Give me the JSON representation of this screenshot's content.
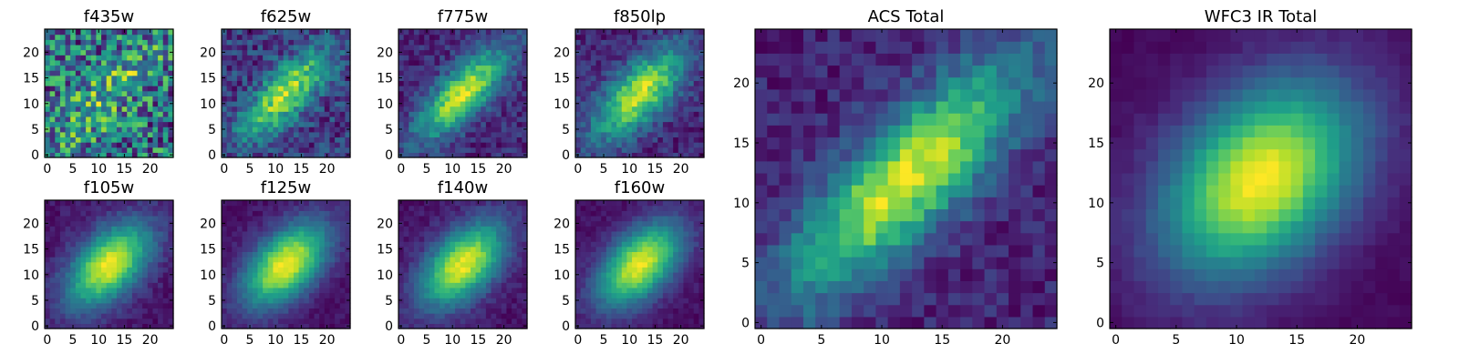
{
  "chart_data": [
    {
      "type": "heatmap",
      "title": "f435w",
      "grid_size": 25,
      "ylim": [
        -0.5,
        24.5
      ],
      "xlim": [
        -0.5,
        24.5
      ],
      "xticks": [
        0,
        5,
        10,
        15,
        20
      ],
      "yticks": [
        0,
        5,
        10,
        15,
        20
      ],
      "colormap": "viridis",
      "peak": [
        12,
        12
      ],
      "spread": [
        9,
        3
      ],
      "angle_deg": 45,
      "noise": 0.9,
      "background": 0.65
    },
    {
      "type": "heatmap",
      "title": "f625w",
      "grid_size": 25,
      "ylim": [
        -0.5,
        24.5
      ],
      "xlim": [
        -0.5,
        24.5
      ],
      "xticks": [
        0,
        5,
        10,
        15,
        20
      ],
      "yticks": [
        0,
        5,
        10,
        15,
        20
      ],
      "colormap": "viridis",
      "peak": [
        12,
        12
      ],
      "spread": [
        8,
        3
      ],
      "angle_deg": 45,
      "noise": 0.35,
      "background": 0.3
    },
    {
      "type": "heatmap",
      "title": "f775w",
      "grid_size": 25,
      "ylim": [
        -0.5,
        24.5
      ],
      "xlim": [
        -0.5,
        24.5
      ],
      "xticks": [
        0,
        5,
        10,
        15,
        20
      ],
      "yticks": [
        0,
        5,
        10,
        15,
        20
      ],
      "colormap": "viridis",
      "peak": [
        12,
        12
      ],
      "spread": [
        8,
        3
      ],
      "angle_deg": 45,
      "noise": 0.25,
      "background": 0.15
    },
    {
      "type": "heatmap",
      "title": "f850lp",
      "grid_size": 25,
      "ylim": [
        -0.5,
        24.5
      ],
      "xlim": [
        -0.5,
        24.5
      ],
      "xticks": [
        0,
        5,
        10,
        15,
        20
      ],
      "yticks": [
        0,
        5,
        10,
        15,
        20
      ],
      "colormap": "viridis",
      "peak": [
        12,
        12
      ],
      "spread": [
        8,
        3.5
      ],
      "angle_deg": 45,
      "noise": 0.25,
      "background": 0.15
    },
    {
      "type": "heatmap",
      "title": "f105w",
      "grid_size": 25,
      "ylim": [
        -0.5,
        24.5
      ],
      "xlim": [
        -0.5,
        24.5
      ],
      "xticks": [
        0,
        5,
        10,
        15,
        20
      ],
      "yticks": [
        0,
        5,
        10,
        15,
        20
      ],
      "colormap": "viridis",
      "peak": [
        12,
        12
      ],
      "spread": [
        7,
        4
      ],
      "angle_deg": 45,
      "noise": 0.12,
      "background": 0.1
    },
    {
      "type": "heatmap",
      "title": "f125w",
      "grid_size": 25,
      "ylim": [
        -0.5,
        24.5
      ],
      "xlim": [
        -0.5,
        24.5
      ],
      "xticks": [
        0,
        5,
        10,
        15,
        20
      ],
      "yticks": [
        0,
        5,
        10,
        15,
        20
      ],
      "colormap": "viridis",
      "peak": [
        12,
        12
      ],
      "spread": [
        7,
        4
      ],
      "angle_deg": 45,
      "noise": 0.1,
      "background": 0.08
    },
    {
      "type": "heatmap",
      "title": "f140w",
      "grid_size": 25,
      "ylim": [
        -0.5,
        24.5
      ],
      "xlim": [
        -0.5,
        24.5
      ],
      "xticks": [
        0,
        5,
        10,
        15,
        20
      ],
      "yticks": [
        0,
        5,
        10,
        15,
        20
      ],
      "colormap": "viridis",
      "peak": [
        12,
        12
      ],
      "spread": [
        7,
        4
      ],
      "angle_deg": 45,
      "noise": 0.12,
      "background": 0.08
    },
    {
      "type": "heatmap",
      "title": "f160w",
      "grid_size": 25,
      "ylim": [
        -0.5,
        24.5
      ],
      "xlim": [
        -0.5,
        24.5
      ],
      "xticks": [
        0,
        5,
        10,
        15,
        20
      ],
      "yticks": [
        0,
        5,
        10,
        15,
        20
      ],
      "colormap": "viridis",
      "peak": [
        12,
        12
      ],
      "spread": [
        7,
        4
      ],
      "angle_deg": 45,
      "noise": 0.1,
      "background": 0.05
    },
    {
      "type": "heatmap",
      "title": "ACS Total",
      "grid_size": 25,
      "ylim": [
        -0.5,
        24.5
      ],
      "xlim": [
        -0.5,
        24.5
      ],
      "xticks": [
        0,
        5,
        10,
        15,
        20
      ],
      "yticks": [
        0,
        5,
        10,
        15,
        20
      ],
      "colormap": "viridis",
      "peak": [
        12,
        12
      ],
      "spread": [
        9,
        3
      ],
      "angle_deg": 45,
      "noise": 0.2,
      "background": 0.15
    },
    {
      "type": "heatmap",
      "title": "WFC3 IR Total",
      "grid_size": 25,
      "ylim": [
        -0.5,
        24.5
      ],
      "xlim": [
        -0.5,
        24.5
      ],
      "xticks": [
        0,
        5,
        10,
        15,
        20
      ],
      "yticks": [
        0,
        5,
        10,
        15,
        20
      ],
      "colormap": "viridis",
      "peak": [
        12,
        12
      ],
      "spread": [
        6.5,
        4.5
      ],
      "angle_deg": 45,
      "noise": 0.05,
      "background": 0.05
    }
  ]
}
